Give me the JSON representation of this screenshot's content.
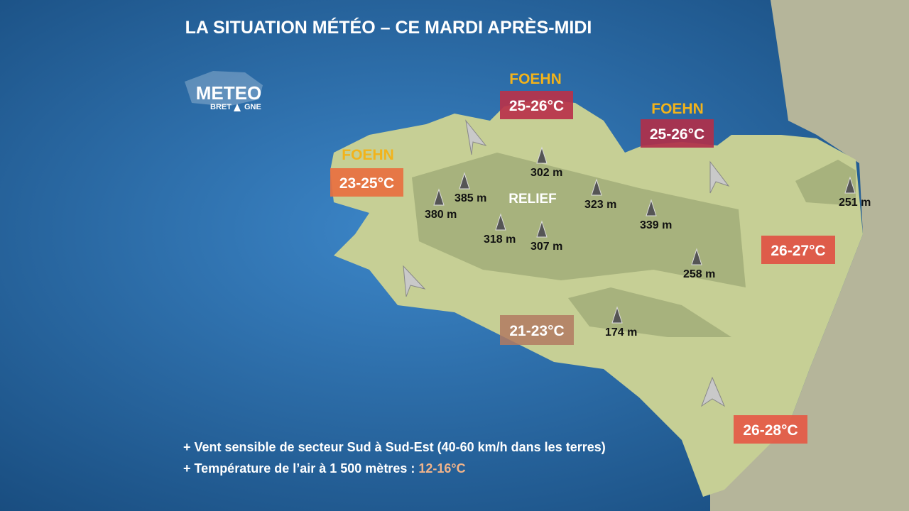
{
  "title": "LA SITUATION MÉTÉO – CE MARDI APRÈS-MIDI",
  "logo": {
    "line1": "METEO",
    "line2a": "BRET",
    "line2b": "GNE"
  },
  "foehn": [
    "FOEHN",
    "FOEHN",
    "FOEHN"
  ],
  "relief": "RELIEF",
  "temperatures": [
    {
      "label": "23-25°C",
      "color": "#e8703f"
    },
    {
      "label": "25-26°C",
      "color": "#b8324a"
    },
    {
      "label": "25-26°C",
      "color": "#b0304a"
    },
    {
      "label": "26-27°C",
      "color": "#e05343"
    },
    {
      "label": "21-23°C",
      "color": "#b27a62"
    },
    {
      "label": "26-28°C",
      "color": "#e55a45"
    }
  ],
  "elevations": [
    "385 m",
    "380 m",
    "302 m",
    "323 m",
    "339 m",
    "318 m",
    "307 m",
    "258 m",
    "174 m",
    "251 m"
  ],
  "notes": {
    "line1": "+ Vent sensible de secteur Sud à Sud-Est (40-60 km/h dans les terres)",
    "line2": "+ Température de l’air à 1 500 mètres : ",
    "line2_value": "12-16°C"
  }
}
